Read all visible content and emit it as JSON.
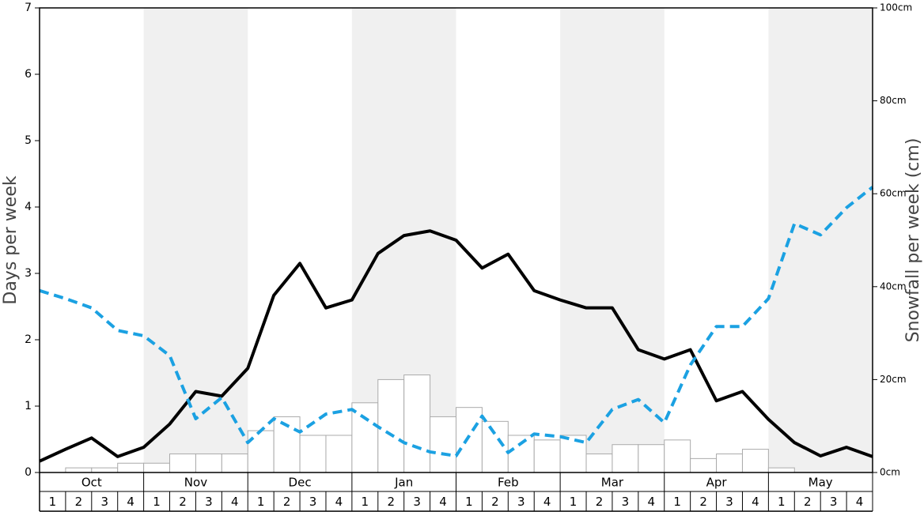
{
  "chart_data": {
    "type": "bar-line",
    "ylabel": "Days per week",
    "y2label": "Snowfall per week (cm)",
    "months": [
      "Oct",
      "Nov",
      "Dec",
      "Jan",
      "Feb",
      "Mar",
      "Apr",
      "May"
    ],
    "shaded_months": [
      false,
      true,
      false,
      true,
      false,
      true,
      false,
      true
    ],
    "categories": [
      "1",
      "2",
      "3",
      "4",
      "1",
      "2",
      "3",
      "4",
      "1",
      "2",
      "3",
      "4",
      "1",
      "2",
      "3",
      "4",
      "1",
      "2",
      "3",
      "4",
      "1",
      "2",
      "3",
      "4",
      "1",
      "2",
      "3",
      "4",
      "1",
      "2",
      "3",
      "4"
    ],
    "ylim": [
      0,
      7
    ],
    "yticks": [
      0,
      1,
      2,
      3,
      4,
      5,
      6,
      7
    ],
    "y2lim": [
      0,
      100
    ],
    "y2ticks": [
      {
        "value": 0,
        "label": "0cm"
      },
      {
        "value": 20,
        "label": "20cm"
      },
      {
        "value": 40,
        "label": "40cm"
      },
      {
        "value": 60,
        "label": "60cm"
      },
      {
        "value": 80,
        "label": "80cm"
      },
      {
        "value": 100,
        "label": "100cm"
      }
    ],
    "xlim": [
      0,
      32
    ],
    "x": [
      0,
      1,
      2,
      3,
      4,
      5,
      6,
      7,
      8,
      9,
      10,
      11,
      12,
      13,
      14,
      15,
      16,
      17,
      18,
      19,
      20,
      21,
      22,
      23,
      24,
      25,
      26,
      27,
      28,
      29,
      30,
      31,
      32
    ],
    "bars": {
      "axis": "y2",
      "color": "#ffffff",
      "stroke": "#aaaaaa",
      "values": [
        0,
        1,
        1,
        2,
        2,
        4,
        4,
        4,
        9,
        12,
        8,
        8,
        15,
        20,
        21,
        12,
        14,
        11,
        8,
        7,
        8,
        4,
        6,
        6,
        7,
        3,
        4,
        5,
        1,
        0,
        0,
        0
      ]
    },
    "series": [
      {
        "color": "#000000",
        "dash": false,
        "values": [
          0.17,
          0.35,
          0.52,
          0.24,
          0.38,
          0.73,
          1.22,
          1.15,
          1.57,
          2.67,
          3.15,
          2.48,
          2.6,
          3.3,
          3.57,
          3.64,
          3.5,
          3.08,
          3.29,
          2.74,
          2.6,
          2.48,
          2.48,
          1.85,
          1.71,
          1.85,
          1.08,
          1.22,
          0.8,
          0.45,
          0.25,
          0.38,
          0.24
        ]
      },
      {
        "color": "#1ba1e2",
        "dash": true,
        "values": [
          2.74,
          2.62,
          2.48,
          2.14,
          2.06,
          1.76,
          0.81,
          1.13,
          0.45,
          0.81,
          0.61,
          0.88,
          0.95,
          0.69,
          0.45,
          0.31,
          0.25,
          0.85,
          0.3,
          0.58,
          0.54,
          0.45,
          0.95,
          1.1,
          0.75,
          1.62,
          2.2,
          2.2,
          2.62,
          3.75,
          3.58,
          3.99,
          4.3
        ]
      }
    ]
  }
}
